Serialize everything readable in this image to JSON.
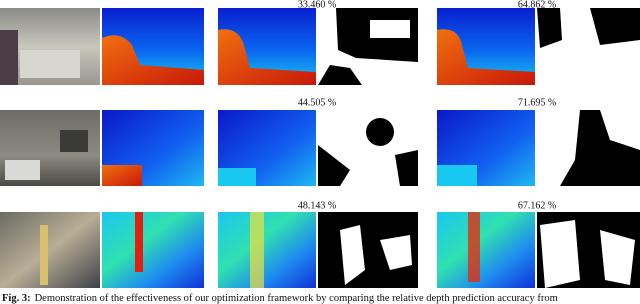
{
  "rows": [
    {
      "accuracy_before": "33.460 %",
      "accuracy_after": "64.862 %"
    },
    {
      "accuracy_before": "44.505 %",
      "accuracy_after": "71.695 %"
    },
    {
      "accuracy_before": "48.143 %",
      "accuracy_after": "67.162 %"
    }
  ],
  "caption": {
    "label": "Fig. 3:",
    "text": "Demonstration of the effectiveness of our optimization framework by comparing the relative depth prediction accuracy from"
  }
}
